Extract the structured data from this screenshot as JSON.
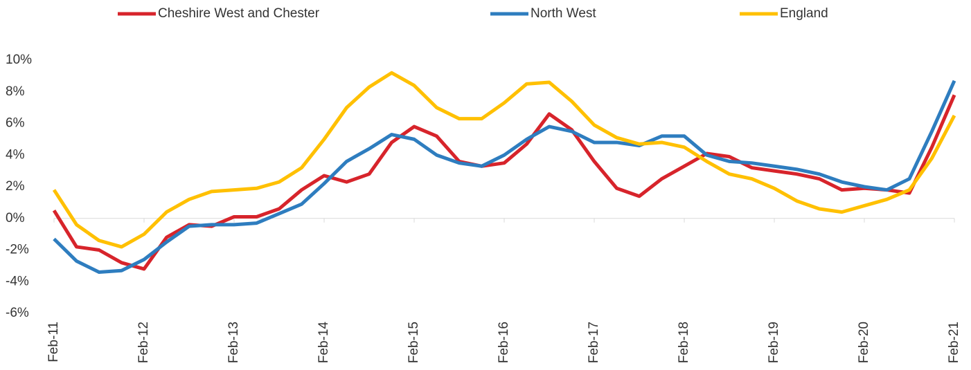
{
  "chart_data": {
    "type": "line",
    "categories": [
      "Feb-11",
      null,
      null,
      null,
      "Feb-12",
      null,
      null,
      null,
      "Feb-13",
      null,
      null,
      null,
      "Feb-14",
      null,
      null,
      null,
      "Feb-15",
      null,
      null,
      null,
      "Feb-16",
      null,
      null,
      null,
      "Feb-17",
      null,
      null,
      null,
      "Feb-18",
      null,
      null,
      null,
      "Feb-19",
      null,
      null,
      null,
      "Feb-20",
      null,
      null,
      null,
      "Feb-21"
    ],
    "series": [
      {
        "name": "Cheshire West and Chester",
        "color": "#d7242b",
        "values": [
          0.5,
          -1.8,
          -2.0,
          -2.8,
          -3.2,
          -1.2,
          -0.4,
          -0.5,
          0.1,
          0.1,
          0.6,
          1.8,
          2.7,
          2.3,
          2.8,
          4.8,
          5.8,
          5.2,
          3.6,
          3.3,
          3.5,
          4.7,
          6.6,
          5.6,
          3.6,
          1.9,
          1.4,
          2.5,
          3.3,
          4.1,
          3.9,
          3.2,
          3.0,
          2.8,
          2.5,
          1.8,
          1.9,
          1.8,
          1.6,
          4.5,
          7.8
        ]
      },
      {
        "name": "North West",
        "color": "#2e7dbf",
        "values": [
          -1.3,
          -2.7,
          -3.4,
          -3.3,
          -2.6,
          -1.5,
          -0.5,
          -0.4,
          -0.4,
          -0.3,
          0.3,
          0.9,
          2.2,
          3.6,
          4.4,
          5.3,
          5.0,
          4.0,
          3.5,
          3.3,
          4.0,
          5.0,
          5.8,
          5.5,
          4.8,
          4.8,
          4.6,
          5.2,
          5.2,
          4.0,
          3.6,
          3.5,
          3.3,
          3.1,
          2.8,
          2.3,
          2.0,
          1.8,
          2.5,
          5.5,
          8.7
        ]
      },
      {
        "name": "England",
        "color": "#ffc000",
        "values": [
          1.8,
          -0.4,
          -1.4,
          -1.8,
          -1.0,
          0.4,
          1.2,
          1.7,
          1.8,
          1.9,
          2.3,
          3.2,
          5.0,
          7.0,
          8.3,
          9.2,
          8.4,
          7.0,
          6.3,
          6.3,
          7.3,
          8.5,
          8.6,
          7.4,
          5.9,
          5.1,
          4.7,
          4.8,
          4.5,
          3.6,
          2.8,
          2.5,
          1.9,
          1.1,
          0.6,
          0.4,
          0.8,
          1.2,
          1.8,
          3.8,
          6.5
        ]
      }
    ],
    "ylim": [
      -6,
      10
    ],
    "yticks": [
      {
        "value": -6,
        "label": "-6%"
      },
      {
        "value": -4,
        "label": "-4%"
      },
      {
        "value": -2,
        "label": "-2%"
      },
      {
        "value": 0,
        "label": "0%"
      },
      {
        "value": 2,
        "label": "2%"
      },
      {
        "value": 4,
        "label": "4%"
      },
      {
        "value": 6,
        "label": "6%"
      },
      {
        "value": 8,
        "label": "8%"
      },
      {
        "value": 10,
        "label": "10%"
      }
    ],
    "legend": "top"
  }
}
